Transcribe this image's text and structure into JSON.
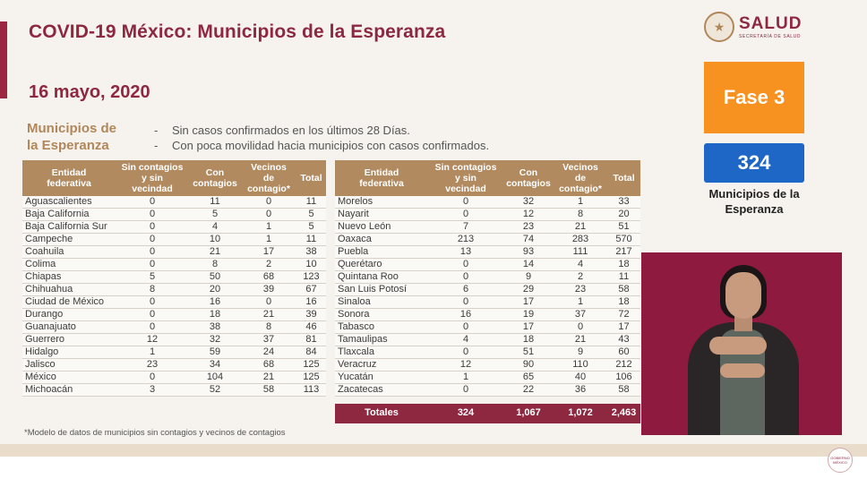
{
  "title": "COVID-19 México: Municipios de la Esperanza",
  "date": "16 mayo, 2020",
  "subhead": [
    "Municipios de",
    "la Esperanza"
  ],
  "bullets": [
    "Sin casos confirmados en los últimos 28 Días.",
    "Con poca movilidad hacia municipios con casos confirmados."
  ],
  "logo": {
    "main": "SALUD",
    "sub": "SECRETARÍA DE SALUD",
    "icon": "national-seal-icon"
  },
  "fase_label": "Fase 3",
  "count": "324",
  "count_label": [
    "Municipios de la",
    "Esperanza"
  ],
  "headers": {
    "entidad": [
      "Entidad",
      "federativa"
    ],
    "sin": [
      "Sin contagios",
      "y sin",
      "vecindad"
    ],
    "con": [
      "Con",
      "contagios"
    ],
    "vecinos": [
      "Vecinos",
      "de",
      "contagio*"
    ],
    "total": "Total"
  },
  "left_rows": [
    [
      "Aguascalientes",
      "0",
      "11",
      "0",
      "11"
    ],
    [
      "Baja California",
      "0",
      "5",
      "0",
      "5"
    ],
    [
      "Baja California Sur",
      "0",
      "4",
      "1",
      "5"
    ],
    [
      "Campeche",
      "0",
      "10",
      "1",
      "11"
    ],
    [
      "Coahuila",
      "0",
      "21",
      "17",
      "38"
    ],
    [
      "Colima",
      "0",
      "8",
      "2",
      "10"
    ],
    [
      "Chiapas",
      "5",
      "50",
      "68",
      "123"
    ],
    [
      "Chihuahua",
      "8",
      "20",
      "39",
      "67"
    ],
    [
      "Ciudad de México",
      "0",
      "16",
      "0",
      "16"
    ],
    [
      "Durango",
      "0",
      "18",
      "21",
      "39"
    ],
    [
      "Guanajuato",
      "0",
      "38",
      "8",
      "46"
    ],
    [
      "Guerrero",
      "12",
      "32",
      "37",
      "81"
    ],
    [
      "Hidalgo",
      "1",
      "59",
      "24",
      "84"
    ],
    [
      "Jalisco",
      "23",
      "34",
      "68",
      "125"
    ],
    [
      "México",
      "0",
      "104",
      "21",
      "125"
    ],
    [
      "Michoacán",
      "3",
      "52",
      "58",
      "113"
    ]
  ],
  "right_rows": [
    [
      "Morelos",
      "0",
      "32",
      "1",
      "33"
    ],
    [
      "Nayarit",
      "0",
      "12",
      "8",
      "20"
    ],
    [
      "Nuevo León",
      "7",
      "23",
      "21",
      "51"
    ],
    [
      "Oaxaca",
      "213",
      "74",
      "283",
      "570"
    ],
    [
      "Puebla",
      "13",
      "93",
      "111",
      "217"
    ],
    [
      "Querétaro",
      "0",
      "14",
      "4",
      "18"
    ],
    [
      "Quintana Roo",
      "0",
      "9",
      "2",
      "11"
    ],
    [
      "San Luis Potosí",
      "6",
      "29",
      "23",
      "58"
    ],
    [
      "Sinaloa",
      "0",
      "17",
      "1",
      "18"
    ],
    [
      "Sonora",
      "16",
      "19",
      "37",
      "72"
    ],
    [
      "Tabasco",
      "0",
      "17",
      "0",
      "17"
    ],
    [
      "Tamaulipas",
      "4",
      "18",
      "21",
      "43"
    ],
    [
      "Tlaxcala",
      "0",
      "51",
      "9",
      "60"
    ],
    [
      "Veracruz",
      "12",
      "90",
      "110",
      "212"
    ],
    [
      "Yucatán",
      "1",
      "65",
      "40",
      "106"
    ],
    [
      "Zacatecas",
      "0",
      "22",
      "36",
      "58"
    ]
  ],
  "totals": [
    "Totales",
    "324",
    "1,067",
    "1,072",
    "2,463"
  ],
  "footnote": "*Modelo de datos de municipios sin contagios y vecinos de contagios",
  "colors": {
    "accent": "#8e2740",
    "gold": "#b18a60",
    "fase": "#f7911f",
    "count": "#1f67c6"
  }
}
